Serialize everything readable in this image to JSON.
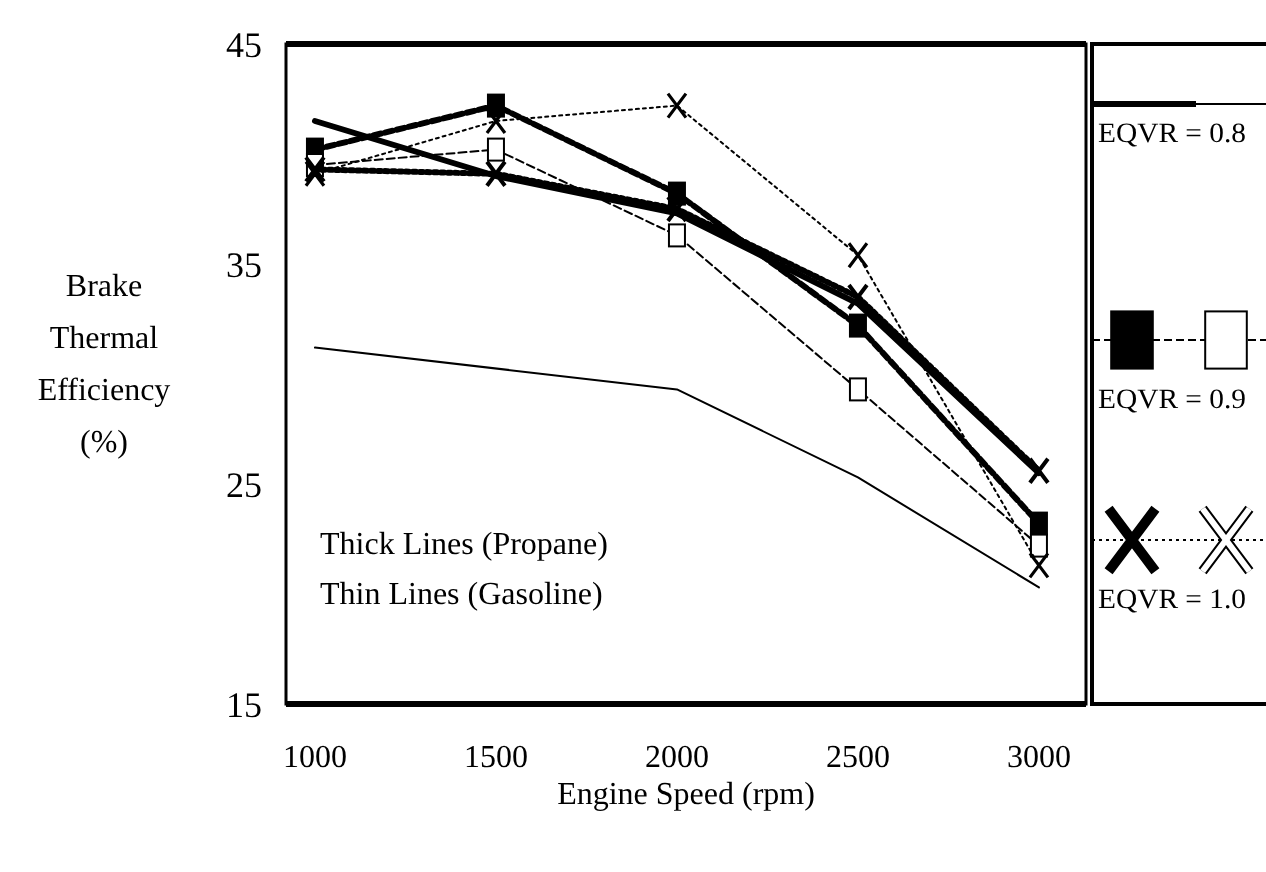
{
  "chart_data": {
    "type": "line",
    "ylabel": "Brake Thermal Efficiency (%)",
    "xlabel": "Engine Speed (rpm)",
    "x": [
      1000,
      1500,
      2000,
      2500,
      3000
    ],
    "xlim": [
      920,
      3130
    ],
    "xticks": [
      1000,
      1500,
      2000,
      2500,
      3000
    ],
    "ylim": [
      15,
      45
    ],
    "yticks": [
      15,
      25,
      35,
      45
    ],
    "grid": false,
    "legend": "right",
    "annotations": [
      "Thick Lines (Propane)",
      "Thin Lines (Gasoline)"
    ],
    "series": [
      {
        "name": "EQVR = 0.8",
        "color": "#000000",
        "marker": "none",
        "line_style": "solid",
        "values": [
          41.5,
          39,
          37.3,
          33.2,
          25.5
        ]
      },
      {
        "color": "#000000",
        "marker": "none",
        "line_style": "solid",
        "values": [
          31.2,
          null,
          29.3,
          25.3,
          20.3
        ]
      },
      {
        "name": "EQVR = 0.9",
        "color": "#000000",
        "marker": "square",
        "line_style": "dashed",
        "values": [
          40.2,
          42.2,
          38.2,
          32.2,
          23.2
        ]
      },
      {
        "color": "#000000",
        "marker": "square",
        "line_style": "dashed",
        "values": [
          39.5,
          40.2,
          36.3,
          29.3,
          22.2
        ]
      },
      {
        "name": "EQVR = 1.0",
        "color": "#000000",
        "marker": "cross",
        "line_style": "dotted",
        "values": [
          39.3,
          39.1,
          37.5,
          33.5,
          25.6
        ]
      },
      {
        "color": "#000000",
        "marker": "cross",
        "line_style": "dotted",
        "values": [
          39.1,
          41.5,
          42.2,
          35.4,
          21.3
        ]
      }
    ]
  }
}
